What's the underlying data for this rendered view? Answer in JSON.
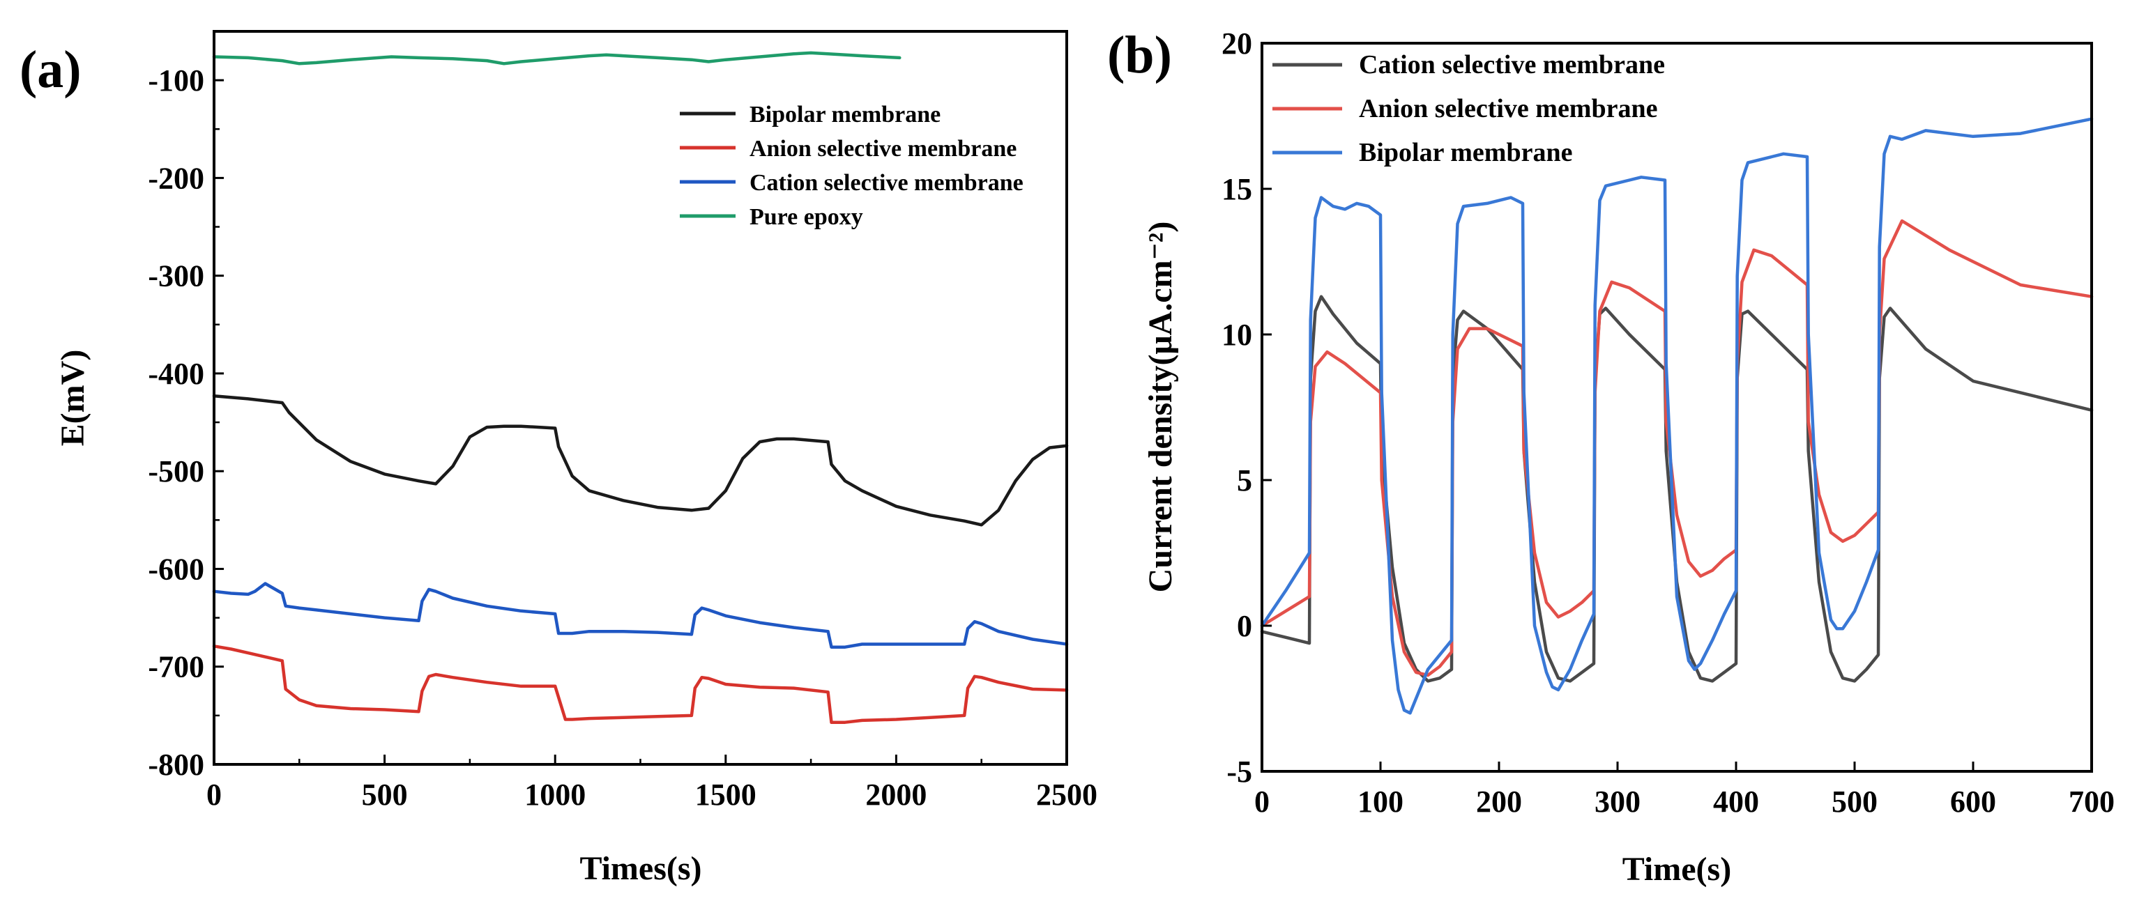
{
  "chart_data": [
    {
      "type": "line",
      "panel_label": "(a)",
      "xlabel": "Times(s)",
      "ylabel": "E(mV)",
      "xlim": [
        0,
        2500
      ],
      "ylim": [
        -800,
        -50
      ],
      "xticks": [
        0,
        500,
        1000,
        1500,
        2000,
        2500
      ],
      "yticks": [
        -100,
        -200,
        -300,
        -400,
        -500,
        -600,
        -700,
        -800
      ],
      "grid": false,
      "legend_position": "top-right",
      "series": [
        {
          "name": "Bipolar membrane",
          "color": "#1a1a1a",
          "x": [
            0,
            100,
            200,
            220,
            300,
            400,
            500,
            600,
            650,
            700,
            750,
            800,
            850,
            900,
            1000,
            1010,
            1050,
            1100,
            1200,
            1300,
            1400,
            1450,
            1500,
            1550,
            1600,
            1650,
            1700,
            1800,
            1810,
            1850,
            1900,
            2000,
            2100,
            2200,
            2250,
            2300,
            2350,
            2400,
            2450,
            2500
          ],
          "y": [
            -423,
            -426,
            -430,
            -440,
            -468,
            -490,
            -503,
            -510,
            -513,
            -495,
            -465,
            -455,
            -454,
            -454,
            -456,
            -475,
            -505,
            -520,
            -530,
            -537,
            -540,
            -538,
            -520,
            -487,
            -470,
            -467,
            -467,
            -470,
            -493,
            -510,
            -520,
            -536,
            -545,
            -551,
            -555,
            -540,
            -510,
            -488,
            -476,
            -474
          ]
        },
        {
          "name": "Anion selective membrane",
          "color": "#d7332c",
          "x": [
            0,
            50,
            100,
            150,
            200,
            210,
            250,
            300,
            400,
            500,
            600,
            610,
            630,
            650,
            700,
            800,
            900,
            1000,
            1030,
            1050,
            1100,
            1200,
            1300,
            1400,
            1410,
            1430,
            1450,
            1500,
            1600,
            1700,
            1800,
            1810,
            1850,
            1900,
            2000,
            2100,
            2200,
            2210,
            2230,
            2250,
            2300,
            2400,
            2500
          ],
          "y": [
            -679,
            -682,
            -686,
            -690,
            -694,
            -723,
            -734,
            -740,
            -743,
            -744,
            -746,
            -725,
            -710,
            -708,
            -711,
            -716,
            -720,
            -720,
            -754,
            -754,
            -753,
            -752,
            -751,
            -750,
            -722,
            -711,
            -712,
            -718,
            -721,
            -722,
            -726,
            -757,
            -757,
            -755,
            -754,
            -752,
            -750,
            -722,
            -710,
            -711,
            -716,
            -723,
            -724
          ]
        },
        {
          "name": "Cation selective membrane",
          "color": "#1f57c3",
          "x": [
            0,
            50,
            100,
            120,
            150,
            200,
            210,
            250,
            300,
            400,
            500,
            600,
            610,
            630,
            650,
            700,
            800,
            900,
            1000,
            1010,
            1050,
            1100,
            1200,
            1300,
            1400,
            1410,
            1430,
            1450,
            1500,
            1600,
            1700,
            1800,
            1810,
            1850,
            1900,
            2000,
            2100,
            2200,
            2210,
            2230,
            2250,
            2300,
            2400,
            2500
          ],
          "y": [
            -623,
            -625,
            -626,
            -623,
            -615,
            -625,
            -638,
            -640,
            -642,
            -646,
            -650,
            -653,
            -633,
            -621,
            -623,
            -630,
            -638,
            -643,
            -646,
            -666,
            -666,
            -664,
            -664,
            -665,
            -667,
            -647,
            -640,
            -642,
            -648,
            -655,
            -660,
            -664,
            -680,
            -680,
            -677,
            -677,
            -677,
            -677,
            -661,
            -654,
            -656,
            -664,
            -672,
            -677
          ]
        },
        {
          "name": "Pure epoxy",
          "color": "#1f9c6a",
          "x": [
            0,
            100,
            200,
            250,
            300,
            400,
            520,
            600,
            700,
            800,
            850,
            900,
            1000,
            1100,
            1150,
            1200,
            1300,
            1400,
            1450,
            1500,
            1600,
            1700,
            1750,
            1800,
            1900,
            2010
          ],
          "y": [
            -76,
            -77,
            -80,
            -83,
            -82,
            -79,
            -76,
            -77,
            -78,
            -80,
            -83,
            -81,
            -78,
            -75,
            -74,
            -75,
            -77,
            -79,
            -81,
            -79,
            -76,
            -73,
            -72,
            -73,
            -75,
            -77
          ]
        }
      ]
    },
    {
      "type": "line",
      "panel_label": "(b)",
      "xlabel": "Time(s)",
      "ylabel": "Current density(μA.cm⁻²)",
      "xlim": [
        0,
        700
      ],
      "ylim": [
        -5,
        20
      ],
      "xticks": [
        0,
        100,
        200,
        300,
        400,
        500,
        600,
        700
      ],
      "yticks": [
        -5,
        0,
        5,
        10,
        15,
        20
      ],
      "grid": false,
      "legend_position": "top-left",
      "series": [
        {
          "name": "Cation selective membrane",
          "color": "#4a4a4a",
          "x": [
            0,
            20,
            40,
            41,
            45,
            50,
            60,
            80,
            100,
            101,
            110,
            120,
            130,
            140,
            150,
            160,
            161,
            165,
            170,
            190,
            220,
            221,
            230,
            240,
            250,
            260,
            270,
            280,
            281,
            285,
            290,
            310,
            340,
            341,
            350,
            360,
            370,
            380,
            390,
            400,
            401,
            405,
            410,
            430,
            460,
            461,
            470,
            480,
            490,
            500,
            510,
            520,
            521,
            525,
            530,
            560,
            600,
            640,
            680,
            700
          ],
          "y": [
            -0.2,
            -0.4,
            -0.6,
            8.5,
            10.8,
            11.3,
            10.7,
            9.7,
            9.0,
            6.0,
            2.0,
            -0.6,
            -1.5,
            -1.9,
            -1.8,
            -1.5,
            8.5,
            10.5,
            10.8,
            10.2,
            8.8,
            6.0,
            1.5,
            -0.9,
            -1.8,
            -1.9,
            -1.6,
            -1.3,
            8.5,
            10.7,
            10.9,
            10.0,
            8.8,
            6.0,
            1.5,
            -0.9,
            -1.8,
            -1.9,
            -1.6,
            -1.3,
            8.5,
            10.7,
            10.8,
            10.0,
            8.8,
            6.0,
            1.5,
            -0.9,
            -1.8,
            -1.9,
            -1.5,
            -1.0,
            8.5,
            10.6,
            10.9,
            9.5,
            8.4,
            8.0,
            7.6,
            7.4
          ]
        },
        {
          "name": "Anion selective membrane",
          "color": "#e3504a",
          "x": [
            0,
            20,
            40,
            41,
            45,
            55,
            70,
            100,
            101,
            110,
            120,
            130,
            140,
            150,
            160,
            161,
            165,
            175,
            190,
            220,
            221,
            230,
            240,
            250,
            260,
            270,
            280,
            281,
            285,
            295,
            310,
            340,
            341,
            350,
            360,
            370,
            380,
            390,
            400,
            401,
            405,
            415,
            430,
            460,
            461,
            470,
            480,
            490,
            500,
            510,
            520,
            521,
            525,
            540,
            580,
            640,
            700
          ],
          "y": [
            0.0,
            0.5,
            1.0,
            7.0,
            8.9,
            9.4,
            9.0,
            8.0,
            5.0,
            1.0,
            -0.9,
            -1.6,
            -1.7,
            -1.4,
            -0.9,
            7.0,
            9.5,
            10.2,
            10.2,
            9.6,
            6.0,
            2.5,
            0.8,
            0.3,
            0.5,
            0.8,
            1.2,
            8.0,
            10.8,
            11.8,
            11.6,
            10.8,
            7.0,
            3.8,
            2.2,
            1.7,
            1.9,
            2.3,
            2.6,
            9.0,
            11.8,
            12.9,
            12.7,
            11.7,
            7.0,
            4.5,
            3.2,
            2.9,
            3.1,
            3.5,
            3.9,
            10.0,
            12.6,
            13.9,
            12.9,
            11.7,
            11.3
          ]
        },
        {
          "name": "Bipolar membrane",
          "color": "#3978d6",
          "x": [
            0,
            20,
            40,
            41,
            45,
            50,
            60,
            70,
            80,
            90,
            100,
            101,
            110,
            115,
            120,
            125,
            130,
            140,
            150,
            160,
            161,
            165,
            170,
            190,
            210,
            220,
            221,
            230,
            240,
            245,
            250,
            260,
            270,
            280,
            281,
            285,
            290,
            310,
            320,
            340,
            341,
            350,
            360,
            365,
            370,
            380,
            390,
            400,
            401,
            405,
            410,
            430,
            440,
            460,
            461,
            470,
            480,
            485,
            490,
            500,
            510,
            520,
            521,
            525,
            530,
            540,
            560,
            600,
            640,
            700
          ],
          "y": [
            0.0,
            1.2,
            2.5,
            10.5,
            14.0,
            14.7,
            14.4,
            14.3,
            14.5,
            14.4,
            14.1,
            8.0,
            -0.5,
            -2.2,
            -2.9,
            -3.0,
            -2.5,
            -1.5,
            -1.0,
            -0.5,
            10.0,
            13.8,
            14.4,
            14.5,
            14.7,
            14.5,
            8.0,
            0.0,
            -1.6,
            -2.1,
            -2.2,
            -1.5,
            -0.5,
            0.4,
            11.0,
            14.6,
            15.1,
            15.3,
            15.4,
            15.3,
            9.0,
            1.0,
            -1.2,
            -1.5,
            -1.3,
            -0.5,
            0.4,
            1.2,
            12.0,
            15.3,
            15.9,
            16.1,
            16.2,
            16.1,
            10.0,
            2.5,
            0.2,
            -0.1,
            -0.1,
            0.5,
            1.5,
            2.6,
            13.0,
            16.2,
            16.8,
            16.7,
            17.0,
            16.8,
            16.9,
            17.4
          ]
        }
      ]
    }
  ]
}
